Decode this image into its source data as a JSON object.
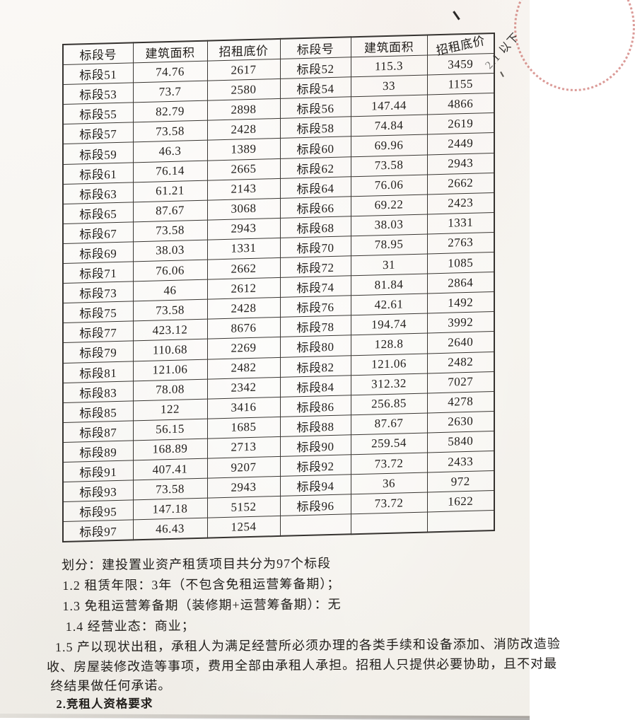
{
  "table": {
    "headers": [
      "标段号",
      "建筑面积",
      "招租底价",
      "标段号",
      "建筑面积",
      "招租底价"
    ],
    "rows": [
      [
        "标段51",
        "74.76",
        "2617",
        "标段52",
        "115.3",
        "3459"
      ],
      [
        "标段53",
        "73.7",
        "2580",
        "标段54",
        "33",
        "1155"
      ],
      [
        "标段55",
        "82.79",
        "2898",
        "标段56",
        "147.44",
        "4866"
      ],
      [
        "标段57",
        "73.58",
        "2428",
        "标段58",
        "74.84",
        "2619"
      ],
      [
        "标段59",
        "46.3",
        "1389",
        "标段60",
        "69.96",
        "2449"
      ],
      [
        "标段61",
        "76.14",
        "2665",
        "标段62",
        "73.58",
        "2943"
      ],
      [
        "标段63",
        "61.21",
        "2143",
        "标段64",
        "76.06",
        "2662"
      ],
      [
        "标段65",
        "87.67",
        "3068",
        "标段66",
        "69.22",
        "2423"
      ],
      [
        "标段67",
        "73.58",
        "2943",
        "标段68",
        "38.03",
        "1331"
      ],
      [
        "标段69",
        "38.03",
        "1331",
        "标段70",
        "78.95",
        "2763"
      ],
      [
        "标段71",
        "76.06",
        "2662",
        "标段72",
        "31",
        "1085"
      ],
      [
        "标段73",
        "46",
        "2612",
        "标段74",
        "81.84",
        "2864"
      ],
      [
        "标段75",
        "73.58",
        "2428",
        "标段76",
        "42.61",
        "1492"
      ],
      [
        "标段77",
        "423.12",
        "8676",
        "标段78",
        "194.74",
        "3992"
      ],
      [
        "标段79",
        "110.68",
        "2269",
        "标段80",
        "128.8",
        "2640"
      ],
      [
        "标段81",
        "121.06",
        "2482",
        "标段82",
        "121.06",
        "2482"
      ],
      [
        "标段83",
        "78.08",
        "2342",
        "标段84",
        "312.32",
        "7027"
      ],
      [
        "标段85",
        "122",
        "3416",
        "标段86",
        "256.85",
        "4278"
      ],
      [
        "标段87",
        "56.15",
        "1685",
        "标段88",
        "87.67",
        "2630"
      ],
      [
        "标段89",
        "168.89",
        "2713",
        "标段90",
        "259.54",
        "5840"
      ],
      [
        "标段91",
        "407.41",
        "9207",
        "标段92",
        "73.72",
        "2433"
      ],
      [
        "标段93",
        "73.58",
        "2943",
        "标段94",
        "36",
        "972"
      ],
      [
        "标段95",
        "147.18",
        "5152",
        "标段96",
        "73.72",
        "1622"
      ],
      [
        "标段97",
        "46.43",
        "1254",
        "",
        "",
        ""
      ]
    ]
  },
  "notes": {
    "lines": [
      "划分：建投置业资产租赁项目共分为97个标段",
      "1.2 租赁年限：3年（不包含免租运营筹备期）；",
      "1.3 免租运营筹备期（装修期+运营筹备期）：无",
      "1.4 经营业态：商业；",
      "1.5 产以现状出租，承租人为满足经营所必须办理的各类手续和设备添加、消防改造验",
      "收、房屋装修改造等事项，费用全部由承租人承担。招租人只提供必要协助，且不对最",
      "终结果做任何承诺。",
      "2.竞租人资格要求"
    ]
  },
  "corner_note": "2.1 以下",
  "colors": {
    "stamp": "rgba(190,72,66,0.55)",
    "ink": "#1c1a18"
  }
}
